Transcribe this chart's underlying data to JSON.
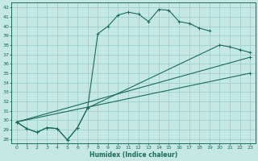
{
  "xlabel": "Humidex (Indice chaleur)",
  "bg_color": "#c5e8e5",
  "grid_color": "#9ecfcc",
  "line_color": "#1a6b5a",
  "xlim": [
    -0.5,
    23.5
  ],
  "ylim": [
    27.5,
    42.5
  ],
  "xticks": [
    0,
    1,
    2,
    3,
    4,
    5,
    6,
    7,
    8,
    9,
    10,
    11,
    12,
    13,
    14,
    15,
    16,
    17,
    18,
    19,
    20,
    21,
    22,
    23
  ],
  "yticks": [
    28,
    29,
    30,
    31,
    32,
    33,
    34,
    35,
    36,
    37,
    38,
    39,
    40,
    41,
    42
  ],
  "line1_x": [
    0,
    1,
    2,
    3,
    4,
    5,
    6,
    7,
    8,
    9,
    10,
    11,
    12,
    13,
    14,
    15,
    16,
    17,
    18,
    19
  ],
  "line1_y": [
    29.8,
    29.1,
    28.7,
    29.2,
    29.1,
    27.9,
    29.2,
    31.3,
    39.2,
    40.0,
    41.2,
    41.5,
    41.3,
    40.5,
    41.8,
    41.7,
    40.5,
    40.3,
    39.8,
    39.5
  ],
  "line2_x": [
    0,
    1,
    2,
    3,
    4,
    5,
    6,
    7,
    20,
    21,
    22,
    23
  ],
  "line2_y": [
    29.8,
    29.1,
    28.7,
    29.2,
    29.1,
    27.9,
    29.2,
    31.3,
    38.0,
    37.8,
    37.5,
    37.2
  ],
  "line3_x": [
    0,
    23
  ],
  "line3_y": [
    29.8,
    36.7
  ],
  "line4_x": [
    0,
    23
  ],
  "line4_y": [
    29.8,
    35.0
  ]
}
